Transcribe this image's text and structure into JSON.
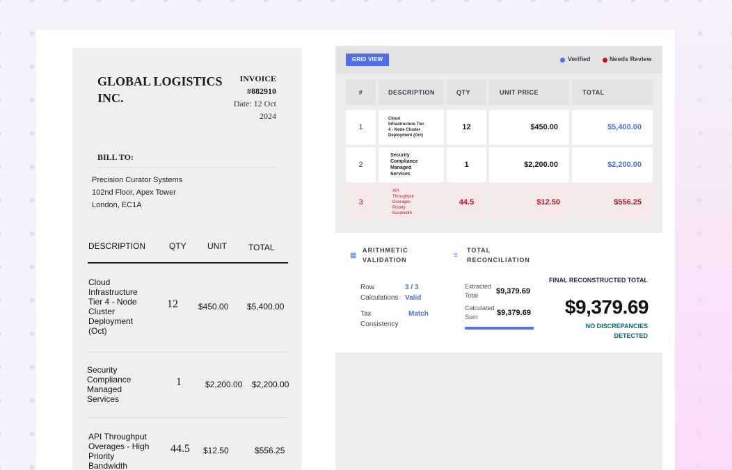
{
  "invoice": {
    "company": "GLOBAL LOGISTICS INC.",
    "invoice_label": "INVOICE",
    "invoice_number": "#882910",
    "date_line1": "Date: 12 Oct",
    "date_line2": "2024",
    "bill_to_label": "BILL TO:",
    "address": [
      "Precision Curator Systems",
      "102nd Floor, Apex Tower",
      "London, EC1A"
    ],
    "headers": {
      "description": "DESCRIPTION",
      "qty": "QTY",
      "unit": "UNIT",
      "total": "TOTAL"
    },
    "rows": [
      {
        "description": "Cloud Infrastructure Tier 4 - Node Cluster Deployment (Oct)",
        "qty": "12",
        "unit": "$450.00",
        "total": "$5,400.00"
      },
      {
        "description": "Security Compliance Managed Services",
        "qty": "1",
        "unit": "$2,200.00",
        "total": "$2,200.00"
      },
      {
        "description": "API Throughput Overages - High Priority Bandwidth",
        "qty": "44.5",
        "unit": "$12.50",
        "total": "$556.25"
      }
    ]
  },
  "panel": {
    "grid_view_label": "GRID VIEW",
    "legend": {
      "verified": "Verified",
      "needs_review": "Needs Review"
    },
    "colors": {
      "accent": "#4f6ee8",
      "verified": "#4f6ee8",
      "needs_review": "#c1121f",
      "success": "#006878"
    },
    "table": {
      "headers": {
        "num": "#",
        "description": "DESCRIPTION",
        "qty": "QTY",
        "unit_price": "UNIT PRICE",
        "total": "TOTAL"
      },
      "rows": [
        {
          "num": "1",
          "description": "Cloud Infrastructure Tier 4 - Node Cluster Deployment (Oct)",
          "qty": "12",
          "unit_price": "$450.00",
          "total": "$5,400.00",
          "status": "verified"
        },
        {
          "num": "2",
          "description": "Security Compliance Managed Services",
          "qty": "1",
          "unit_price": "$2,200.00",
          "total": "$2,200.00",
          "status": "verified"
        },
        {
          "num": "3",
          "description": "API Throughput Overages Priority Bandwidth",
          "qty": "44.5",
          "unit_price": "$12.50",
          "total": "$556.25",
          "status": "needs_review"
        }
      ]
    },
    "validation": {
      "arith_title_1": "ARITHMETIC",
      "arith_title_2": "VALIDATION",
      "arith_icon": "calculator-icon",
      "row_calc_label_1": "Row",
      "row_calc_label_2": "Calculations",
      "row_calc_value_1": "3 / 3",
      "row_calc_value_2": "Valid",
      "tax_label_1": "Tax",
      "tax_label_2": "Consistency",
      "tax_value": "Match",
      "recon_title_1": "TOTAL",
      "recon_title_2": "RECONCILIATION",
      "recon_icon": "compare-icon",
      "extracted_label_1": "Extracted",
      "extracted_label_2": "Total",
      "extracted_value": "$9,379.69",
      "calculated_label_1": "Calculated",
      "calculated_label_2": "Sum",
      "calculated_value": "$9,379.69",
      "final_label": "FINAL RECONSTRUCTED TOTAL",
      "final_value": "$9,379.69",
      "status": "NO DISCREPANCIES DETECTED"
    }
  }
}
